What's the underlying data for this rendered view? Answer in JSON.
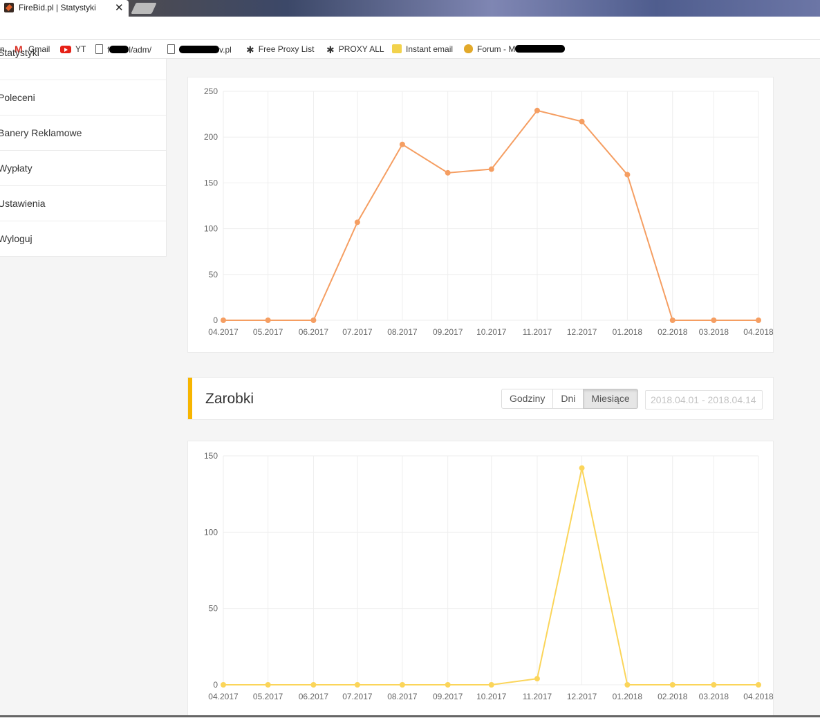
{
  "browser": {
    "tab_title": "FireBid.pl | Statystyki",
    "tab_close": "✕",
    "bookmarks": [
      {
        "label": "n",
        "icon": "none"
      },
      {
        "label": "Gmail",
        "icon": "gmail-icon"
      },
      {
        "label": "YT",
        "icon": "youtube-icon"
      },
      {
        "label": "f",
        "icon": "page-icon",
        "suffix": "l/adm/"
      },
      {
        "label": "",
        "icon": "page-icon",
        "suffix": "v.pl"
      },
      {
        "label": "Free Proxy List",
        "icon": "proxy-icon"
      },
      {
        "label": "PROXY ALL",
        "icon": "proxy-icon"
      },
      {
        "label": "Instant email",
        "icon": "mail-icon"
      },
      {
        "label": "Forum - M",
        "icon": "money-bag-icon"
      }
    ]
  },
  "sidebar": {
    "items": [
      {
        "label": "Statystyki"
      },
      {
        "label": "Poleceni"
      },
      {
        "label": "Banery Reklamowe"
      },
      {
        "label": "Wypłaty"
      },
      {
        "label": "Ustawienia"
      },
      {
        "label": "Wyloguj"
      }
    ]
  },
  "earnings_header": {
    "title": "Zarobki",
    "buttons": [
      "Godziny",
      "Dni",
      "Miesiące"
    ],
    "active_button": "Miesiące",
    "date_range": "2018.04.01 - 2018.04.14"
  },
  "chart_data": [
    {
      "type": "line",
      "color": "#f59e62",
      "categories": [
        "04.2017",
        "05.2017",
        "06.2017",
        "07.2017",
        "08.2017",
        "09.2017",
        "10.2017",
        "11.2017",
        "12.2017",
        "01.2018",
        "02.2018",
        "03.2018",
        "04.2018"
      ],
      "values": [
        0,
        0,
        0,
        107,
        192,
        161,
        165,
        229,
        217,
        159,
        0,
        0,
        0
      ],
      "ylim": [
        0,
        250
      ],
      "yticks": [
        0,
        50,
        100,
        150,
        200,
        250
      ],
      "grid": true
    },
    {
      "type": "line",
      "color": "#fbd55a",
      "categories": [
        "04.2017",
        "05.2017",
        "06.2017",
        "07.2017",
        "08.2017",
        "09.2017",
        "10.2017",
        "11.2017",
        "12.2017",
        "01.2018",
        "02.2018",
        "03.2018",
        "04.2018"
      ],
      "values": [
        0,
        0,
        0,
        0,
        0,
        0,
        0,
        4,
        142,
        0,
        0,
        0,
        0
      ],
      "ylim": [
        0,
        150
      ],
      "yticks": [
        0,
        50,
        100,
        150
      ],
      "grid": true
    }
  ]
}
